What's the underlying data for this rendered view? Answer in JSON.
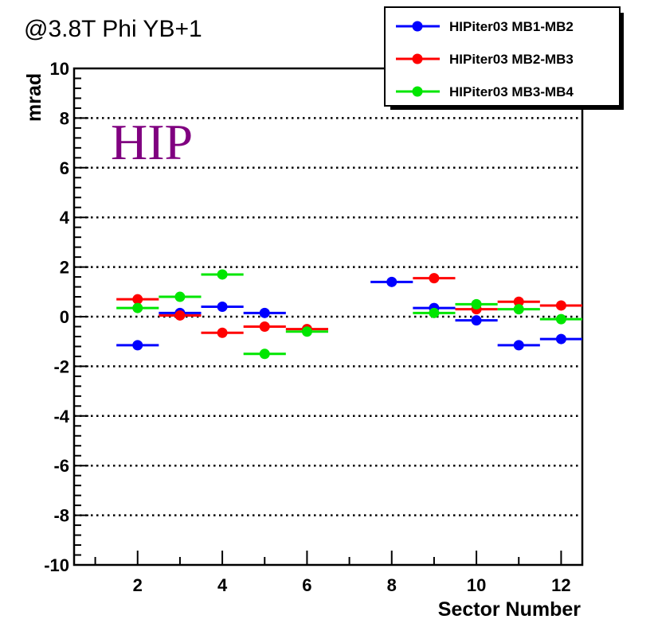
{
  "chart_data": {
    "type": "scatter",
    "title": "@3.8T Phi YB+1",
    "annotation": "HIP",
    "xlabel": "Sector Number",
    "ylabel": "mrad",
    "xlim": [
      0.5,
      12.5
    ],
    "ylim": [
      -10,
      10
    ],
    "x_ticks": [
      2,
      4,
      6,
      8,
      10,
      12
    ],
    "y_ticks": [
      -10,
      -8,
      -6,
      -4,
      -2,
      0,
      2,
      4,
      6,
      8,
      10
    ],
    "grid": "horizontal dotted",
    "legend_position": "top-right",
    "series": [
      {
        "name": "HIPiter03 MB1-MB2",
        "color": "#0000ff",
        "points": [
          {
            "x": 2,
            "y": -1.15
          },
          {
            "x": 3,
            "y": 0.15
          },
          {
            "x": 4,
            "y": 0.4
          },
          {
            "x": 5,
            "y": 0.15
          },
          {
            "x": 8,
            "y": 1.4
          },
          {
            "x": 9,
            "y": 0.35
          },
          {
            "x": 10,
            "y": -0.15
          },
          {
            "x": 11,
            "y": -1.15
          },
          {
            "x": 12,
            "y": -0.9
          }
        ]
      },
      {
        "name": "HIPiter03 MB2-MB3",
        "color": "#ff0000",
        "points": [
          {
            "x": 2,
            "y": 0.7
          },
          {
            "x": 3,
            "y": 0.05
          },
          {
            "x": 4,
            "y": -0.65
          },
          {
            "x": 5,
            "y": -0.4
          },
          {
            "x": 6,
            "y": -0.5
          },
          {
            "x": 9,
            "y": 1.55
          },
          {
            "x": 10,
            "y": 0.3
          },
          {
            "x": 11,
            "y": 0.6
          },
          {
            "x": 12,
            "y": 0.45
          }
        ]
      },
      {
        "name": "HIPiter03 MB3-MB4",
        "color": "#00e600",
        "points": [
          {
            "x": 2,
            "y": 0.35
          },
          {
            "x": 3,
            "y": 0.8
          },
          {
            "x": 4,
            "y": 1.7
          },
          {
            "x": 5,
            "y": -1.5
          },
          {
            "x": 6,
            "y": -0.6
          },
          {
            "x": 9,
            "y": 0.15
          },
          {
            "x": 10,
            "y": 0.5
          },
          {
            "x": 11,
            "y": 0.3
          },
          {
            "x": 12,
            "y": -0.1
          }
        ]
      }
    ]
  }
}
